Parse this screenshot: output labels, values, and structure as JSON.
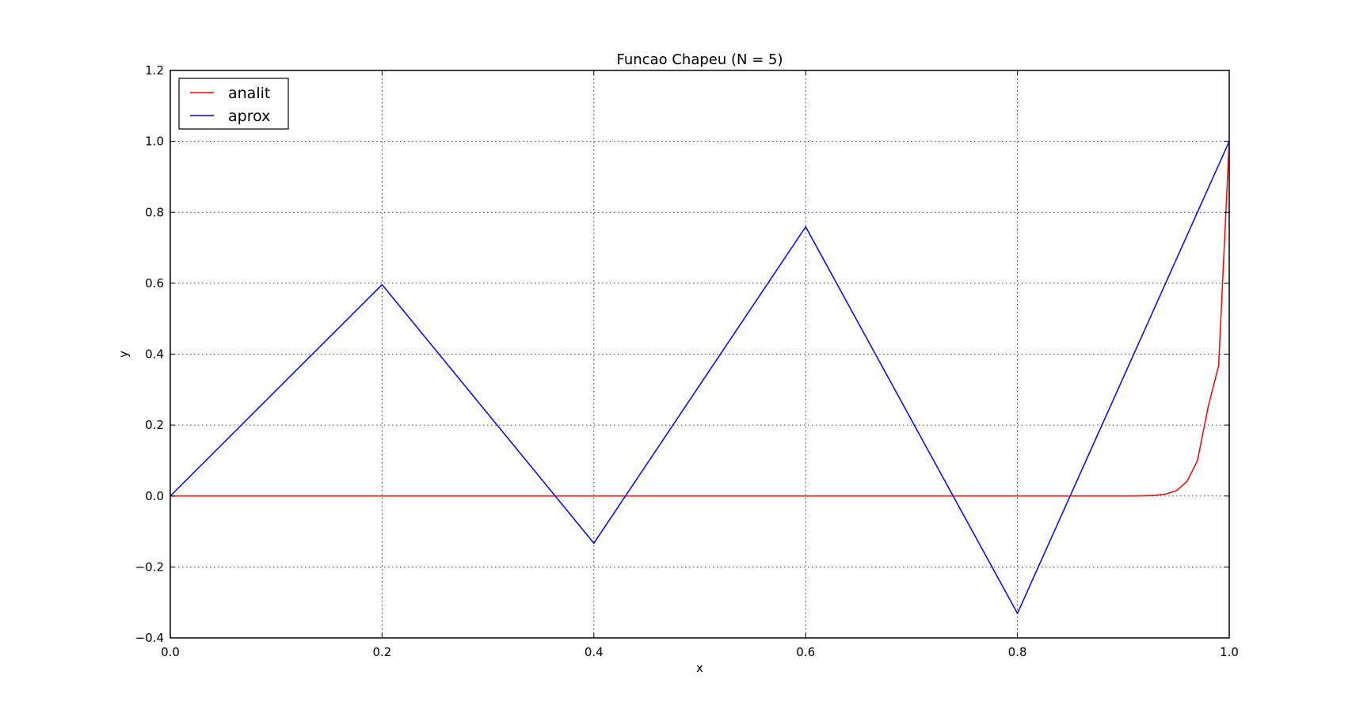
{
  "chart_data": {
    "type": "line",
    "title": "Funcao Chapeu (N = 5)",
    "xlabel": "x",
    "ylabel": "y",
    "xlim": [
      0.0,
      1.0
    ],
    "ylim": [
      -0.4,
      1.2
    ],
    "xticks": [
      0.0,
      0.2,
      0.4,
      0.6,
      0.8,
      1.0
    ],
    "xtick_labels": [
      "0.0",
      "0.2",
      "0.4",
      "0.6",
      "0.8",
      "1.0"
    ],
    "yticks": [
      -0.4,
      -0.2,
      0.0,
      0.2,
      0.4,
      0.6,
      0.8,
      1.0,
      1.2
    ],
    "ytick_labels": [
      "−0.4",
      "−0.2",
      "0.0",
      "0.2",
      "0.4",
      "0.6",
      "0.8",
      "1.0",
      "1.2"
    ],
    "grid": true,
    "legend_position": "top-left",
    "series": [
      {
        "name": "analit",
        "color": "#ff0000",
        "x": [
          0.0,
          0.9,
          0.91,
          0.92,
          0.93,
          0.94,
          0.95,
          0.96,
          0.97,
          0.98,
          0.99,
          1.0
        ],
        "y": [
          0.0,
          0.0,
          0.0003,
          0.0008,
          0.002,
          0.0055,
          0.0149,
          0.0405,
          0.1,
          0.25,
          0.3679,
          1.0
        ]
      },
      {
        "name": "aprox",
        "color": "#0000ff",
        "x": [
          0.0,
          0.2,
          0.4,
          0.6,
          0.8,
          1.0
        ],
        "y": [
          0.0,
          0.596,
          -0.133,
          0.759,
          -0.331,
          1.0
        ]
      }
    ]
  }
}
